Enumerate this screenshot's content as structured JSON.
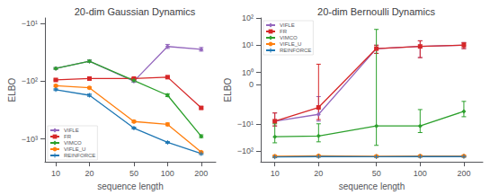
{
  "chart_data": [
    {
      "type": "line",
      "title": "20-dim Gaussian Dynamics",
      "x_label": "sequence length",
      "y_label": "ELBO",
      "x": [
        10,
        20,
        50,
        100,
        200
      ],
      "series": [
        {
          "name": "VIFLE",
          "color": "#9467bd",
          "marker": "diamond",
          "values": [
            -60,
            -45,
            -100,
            -25,
            -28
          ],
          "errors": [
            2,
            2,
            4,
            2,
            2
          ]
        },
        {
          "name": "FR",
          "color": "#d62728",
          "marker": "square",
          "values": [
            -95,
            -90,
            -90,
            -85,
            -290
          ],
          "errors": [
            3,
            2,
            3,
            3,
            12
          ]
        },
        {
          "name": "VIMCO",
          "color": "#2ca02c",
          "marker": "diamond",
          "values": [
            -60,
            -45,
            -97,
            -175,
            -900
          ],
          "errors": [
            2,
            2,
            5,
            10,
            50
          ]
        },
        {
          "name": "VIFLE_U",
          "color": "#ff7f0e",
          "marker": "circle",
          "values": [
            -120,
            -130,
            -500,
            -560,
            -1700
          ],
          "errors": [
            5,
            5,
            20,
            30,
            60
          ]
        },
        {
          "name": "REINFORCE",
          "color": "#1f77b4",
          "marker": "plus",
          "values": [
            -140,
            -175,
            -650,
            -1150,
            -1800
          ],
          "errors": [
            5,
            8,
            25,
            40,
            70
          ]
        }
      ],
      "xlim": [
        8,
        270
      ],
      "xticks": [
        10,
        20,
        50,
        100,
        200
      ],
      "ylim": [
        -2500,
        -8
      ],
      "yticks": [
        {
          "value": -10,
          "label": "−10¹"
        },
        {
          "value": -100,
          "label": "−10²"
        },
        {
          "value": -1000,
          "label": "−10³"
        }
      ],
      "log": true,
      "grid": false,
      "legend": "lower left"
    },
    {
      "type": "line",
      "title": "20-dim Bernoulli Dynamics",
      "x_label": "sequence length",
      "y_label": "ELBO",
      "x": [
        10,
        20,
        50,
        100,
        200
      ],
      "series": [
        {
          "name": "VIFLE",
          "color": "#9467bd",
          "marker": "diamond",
          "values": [
            -8.0,
            -4.5,
            7.5,
            9.0,
            10.0
          ],
          "errors": [
            4.0,
            3.5,
            2.5,
            5.5,
            2.5
          ]
        },
        {
          "name": "FR",
          "color": "#d62728",
          "marker": "square",
          "values": [
            -8.0,
            -2.5,
            7.5,
            9.0,
            10.0
          ],
          "errors": [
            4.0,
            4.5,
            2.5,
            5.5,
            2.5
          ]
        },
        {
          "name": "VIMCO",
          "color": "#2ca02c",
          "marker": "diamond",
          "values": [
            -30,
            -28,
            -12,
            -12,
            -3.5
          ],
          "errors": [
            20,
            18,
            50,
            9,
            2.0
          ]
        },
        {
          "name": "VIFLE_U",
          "color": "#ff7f0e",
          "marker": "circle",
          "values": [
            -155,
            -150,
            -155,
            -152,
            -152
          ],
          "errors": [
            12,
            10,
            10,
            10,
            10
          ]
        },
        {
          "name": "REINFORCE",
          "color": "#1f77b4",
          "marker": "plus",
          "values": [
            -165,
            -160,
            -162,
            -160,
            -160
          ],
          "errors": [
            12,
            10,
            10,
            10,
            10
          ]
        }
      ],
      "xlim": [
        8,
        270
      ],
      "xticks": [
        10,
        20,
        50,
        100,
        200
      ],
      "ylim": [
        -250,
        100
      ],
      "yticks": [
        {
          "value": 100,
          "label": "10²"
        },
        {
          "value": 10,
          "label": "10¹"
        },
        {
          "value": 1,
          "label": "10⁰"
        },
        0,
        {
          "value": -10,
          "label": "−10¹"
        },
        {
          "value": -100,
          "label": "−10²"
        }
      ],
      "log": true,
      "grid": false,
      "legend": "upper left"
    }
  ]
}
